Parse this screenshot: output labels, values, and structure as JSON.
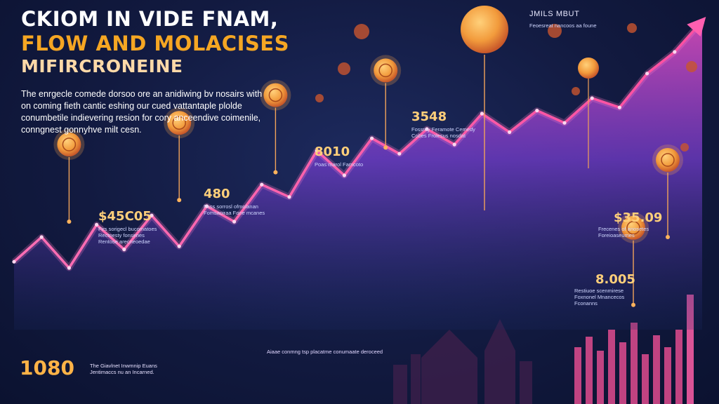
{
  "header": {
    "title_line1": "CKIOM IN VIDE FNAM,",
    "title_line2": "FLOW AND MOLACISES",
    "title_line3": "MIFIRCRONEINE",
    "intro": "The enrgecle comede dorsoo ore an anidiwing bv nosairs with on coming fieth cantic eshing our cued vattantaple plolde conumbetile indievering resion for cory anceendive coimenile, conngnest gonnyhve milt cesn."
  },
  "corner": {
    "label": "JMILS MBUT",
    "caption": "Feoesreat nancoos aa foune"
  },
  "colors": {
    "background": "#121a40",
    "line_primary": "#ff5fb8",
    "area_fill": "#7b3fd6",
    "marker": "#f7a54a",
    "value_text": "#ffcf7a"
  },
  "callouts": [
    {
      "value": "$45C05",
      "caption": "Firs sorigecl bucomatoes Rectnesty fonsenes Rentose arecneoedae"
    },
    {
      "value": "480",
      "caption": "Fuss sorrosl ofmolanan Fomsaoiraa Fone mcanes"
    },
    {
      "value": "8010",
      "caption": "Poas marol Famcoto"
    },
    {
      "value": "3548",
      "caption": "Fossrny Feramote Cemedy Cobes Frolesus nosdat"
    },
    {
      "value": "$35.09",
      "caption": "Frecenes of anosetes Foreioaseumes"
    },
    {
      "value": "8.005",
      "caption": "Restiuoe scenmirese Foxnonel Mnancecos Fconanns"
    }
  ],
  "bottom": {
    "value": "1080",
    "caption": "The Giavlnet Inwmnip Euans Jentimaccs nu an Incarned.",
    "footer_caption": "Aiaae conmng tsp placatme conumaate deroceed"
  },
  "chart_data": {
    "type": "area",
    "title": "CKIOM IN VIDE FNAM, FLOW AND MOLACISES MIFIRCRONEINE",
    "xlabel": "",
    "ylabel": "",
    "xlim": [
      0,
      100
    ],
    "ylim": [
      0,
      100
    ],
    "grid": false,
    "legend": "none",
    "series": [
      {
        "x": [
          0,
          4,
          8,
          12,
          16,
          20,
          24,
          28,
          32,
          36,
          40,
          44,
          48,
          52,
          56,
          60,
          64,
          68,
          72,
          76,
          80,
          84,
          88,
          92,
          96,
          100
        ],
        "values": [
          22,
          30,
          20,
          34,
          26,
          37,
          27,
          40,
          35,
          47,
          43,
          58,
          50,
          62,
          57,
          65,
          60,
          70,
          64,
          71,
          67,
          75,
          72,
          83,
          90,
          100
        ]
      }
    ],
    "markers": [
      {
        "x": 8,
        "y": 60,
        "label": "$45C05"
      },
      {
        "x": 24,
        "y": 67,
        "label": "480"
      },
      {
        "x": 38,
        "y": 76,
        "label": "8010"
      },
      {
        "x": 54,
        "y": 84,
        "label": "3548"
      },
      {
        "x": 95,
        "y": 55,
        "label": "$35.09"
      },
      {
        "x": 90,
        "y": 33,
        "label": "8.005"
      }
    ]
  }
}
